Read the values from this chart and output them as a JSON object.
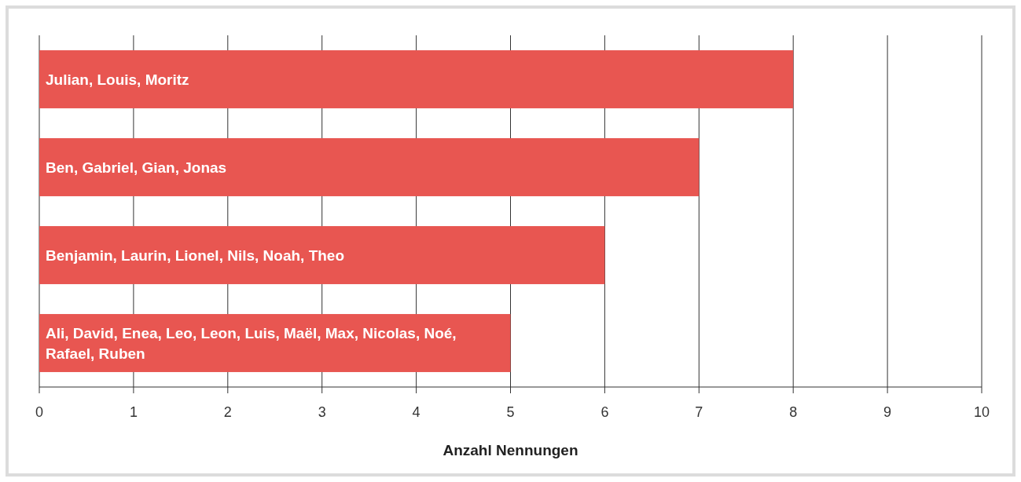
{
  "chart_data": {
    "type": "bar",
    "orientation": "horizontal",
    "xlabel": "Anzahl Nennungen",
    "categories": [
      "Julian, Louis, Moritz",
      "Ben, Gabriel, Gian, Jonas",
      "Benjamin, Laurin, Lionel, Nils, Noah, Theo",
      "Ali, David, Enea, Leo, Leon, Luis, Maël, Max, Nicolas, Noé, Rafael, Ruben"
    ],
    "values": [
      8,
      7,
      6,
      5
    ],
    "color": "#e85651",
    "xlim": [
      0,
      10
    ],
    "xticks": [
      0,
      1,
      2,
      3,
      4,
      5,
      6,
      7,
      8,
      9,
      10
    ],
    "grid": "x"
  }
}
